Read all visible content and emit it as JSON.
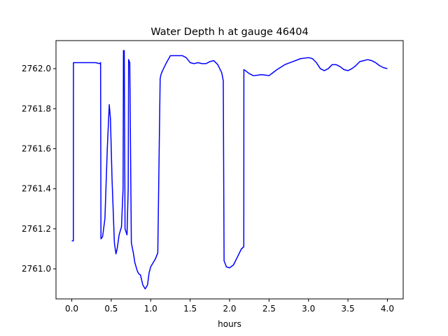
{
  "chart_data": {
    "type": "line",
    "title": "Water Depth h at gauge 46404",
    "xlabel": "hours",
    "ylabel": "",
    "xlim": [
      -0.2,
      4.2
    ],
    "ylim": [
      2760.85,
      2762.14
    ],
    "xticks": [
      0.0,
      0.5,
      1.0,
      1.5,
      2.0,
      2.5,
      3.0,
      3.5,
      4.0
    ],
    "xtick_labels": [
      "0.0",
      "0.5",
      "1.0",
      "1.5",
      "2.0",
      "2.5",
      "3.0",
      "3.5",
      "4.0"
    ],
    "yticks": [
      2761.0,
      2761.2,
      2761.4,
      2761.6,
      2761.8,
      2762.0
    ],
    "ytick_labels": [
      "2761.0",
      "2761.2",
      "2761.4",
      "2761.6",
      "2761.8",
      "2762.0"
    ],
    "grid": false,
    "series": [
      {
        "color": "#0000ff",
        "x": [
          0.0,
          0.02,
          0.021,
          0.1,
          0.2,
          0.3,
          0.355,
          0.365,
          0.37,
          0.39,
          0.42,
          0.45,
          0.475,
          0.49,
          0.51,
          0.54,
          0.56,
          0.575,
          0.6,
          0.63,
          0.65,
          0.655,
          0.665,
          0.675,
          0.7,
          0.715,
          0.72,
          0.735,
          0.755,
          0.78,
          0.8,
          0.83,
          0.85,
          0.87,
          0.9,
          0.93,
          0.96,
          0.98,
          1.0,
          1.03,
          1.06,
          1.09,
          1.12,
          1.13,
          1.15,
          1.2,
          1.25,
          1.3,
          1.35,
          1.4,
          1.45,
          1.5,
          1.55,
          1.6,
          1.65,
          1.7,
          1.75,
          1.8,
          1.85,
          1.9,
          1.92,
          1.93,
          1.96,
          2.0,
          2.05,
          2.1,
          2.15,
          2.18,
          2.181,
          2.2,
          2.25,
          2.3,
          2.35,
          2.4,
          2.45,
          2.5,
          2.55,
          2.6,
          2.7,
          2.8,
          2.9,
          3.0,
          3.05,
          3.1,
          3.15,
          3.2,
          3.25,
          3.3,
          3.35,
          3.4,
          3.45,
          3.5,
          3.55,
          3.6,
          3.65,
          3.7,
          3.75,
          3.8,
          3.85,
          3.9,
          3.95,
          4.0
        ],
        "y": [
          2761.14,
          2761.14,
          2762.03,
          2762.03,
          2762.03,
          2762.03,
          2762.025,
          2762.03,
          2761.15,
          2761.16,
          2761.25,
          2761.6,
          2761.82,
          2761.75,
          2761.45,
          2761.13,
          2761.075,
          2761.1,
          2761.17,
          2761.21,
          2761.4,
          2762.09,
          2762.09,
          2761.2,
          2761.17,
          2761.4,
          2762.045,
          2762.03,
          2761.13,
          2761.08,
          2761.03,
          2760.99,
          2760.975,
          2760.97,
          2760.92,
          2760.9,
          2760.92,
          2760.98,
          2761.01,
          2761.03,
          2761.05,
          2761.08,
          2761.95,
          2761.97,
          2761.99,
          2762.03,
          2762.065,
          2762.065,
          2762.065,
          2762.065,
          2762.055,
          2762.03,
          2762.025,
          2762.03,
          2762.025,
          2762.025,
          2762.035,
          2762.04,
          2762.02,
          2761.98,
          2761.94,
          2761.04,
          2761.01,
          2761.005,
          2761.02,
          2761.06,
          2761.1,
          2761.11,
          2761.995,
          2761.99,
          2761.975,
          2761.965,
          2761.967,
          2761.97,
          2761.968,
          2761.965,
          2761.98,
          2761.995,
          2762.02,
          2762.035,
          2762.05,
          2762.055,
          2762.05,
          2762.03,
          2762.0,
          2761.99,
          2762.0,
          2762.02,
          2762.02,
          2762.01,
          2761.995,
          2761.99,
          2762.0,
          2762.015,
          2762.035,
          2762.04,
          2762.045,
          2762.04,
          2762.03,
          2762.015,
          2762.005,
          2762.0
        ]
      }
    ]
  }
}
